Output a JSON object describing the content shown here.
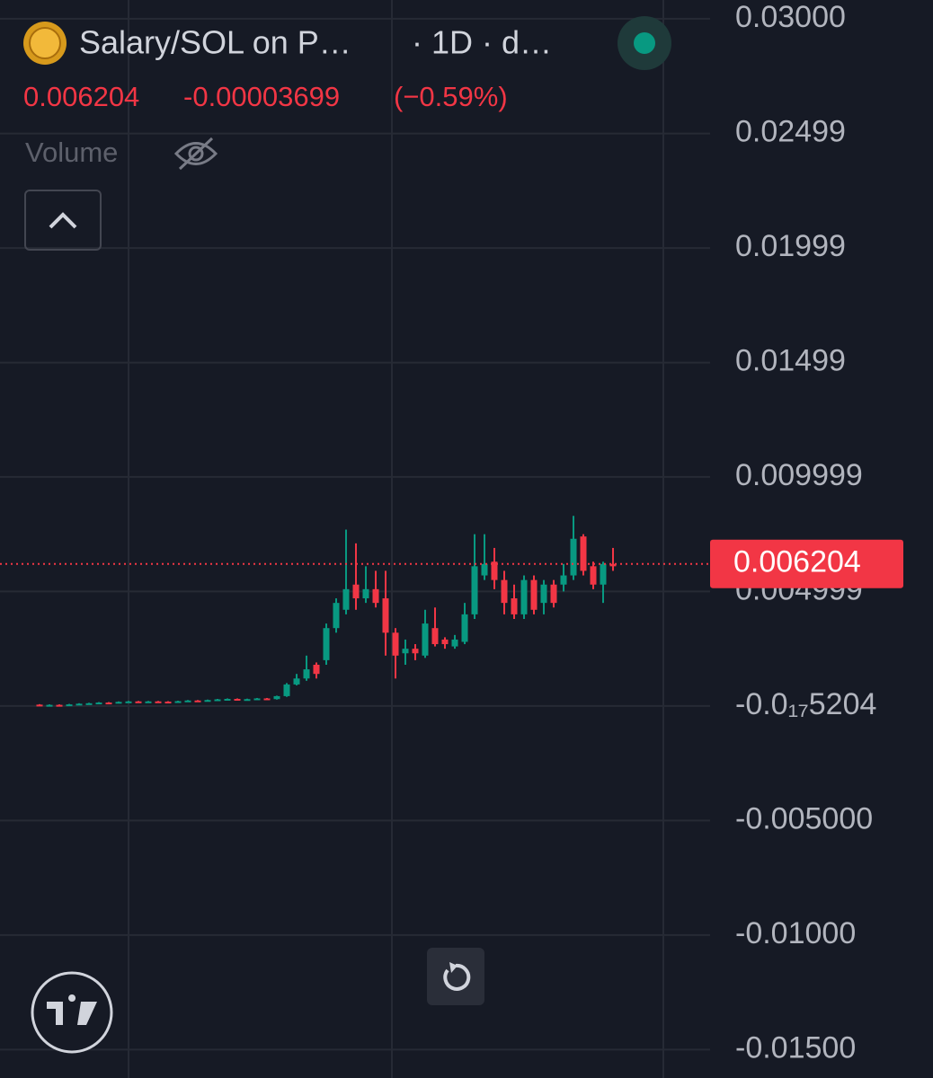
{
  "header": {
    "title": "Salary/SOL on P…",
    "interval": "· 1D · d…",
    "change": -3.699e-05,
    "change_percent": "(−0.59%)",
    "volume_label": "Volume"
  },
  "chart_data": {
    "type": "candlestick",
    "open": [
      6e-05,
      4e-05,
      5e-05,
      4e-05,
      7e-05,
      0.0001,
      0.00012,
      0.00015,
      0.00013,
      0.00018,
      0.0002,
      0.00017,
      0.0002,
      0.00019,
      0.00018,
      0.00021,
      0.00024,
      0.00022,
      0.00026,
      0.00029,
      0.00031,
      0.00028,
      0.0003,
      0.00033,
      0.0003,
      0.00043,
      0.00094,
      0.0012,
      0.0018,
      0.002,
      0.0034,
      0.0042,
      0.0053,
      0.0047,
      0.0051,
      0.0047,
      0.0032,
      0.0023,
      0.0025,
      0.0022,
      0.0034,
      0.0029,
      0.0026,
      0.0028,
      0.004,
      0.0057,
      0.0063,
      0.0055,
      0.0047,
      0.004,
      0.0055,
      0.0045,
      0.0053,
      0.0053,
      0.0057,
      0.0074,
      0.0061,
      0.0053,
      0.0062
    ],
    "high": [
      8e-05,
      7e-05,
      7e-05,
      9e-05,
      0.00012,
      0.00014,
      0.00017,
      0.00017,
      0.0002,
      0.00022,
      0.00022,
      0.00022,
      0.00022,
      0.00021,
      0.00023,
      0.00026,
      0.00026,
      0.00028,
      0.00031,
      0.00033,
      0.00033,
      0.00032,
      0.00035,
      0.00035,
      0.00045,
      0.001,
      0.0014,
      0.0022,
      0.0019,
      0.0036,
      0.0047,
      0.0077,
      0.0071,
      0.0061,
      0.0059,
      0.0059,
      0.0034,
      0.0029,
      0.0027,
      0.0042,
      0.0043,
      0.003,
      0.0031,
      0.0045,
      0.0075,
      0.0075,
      0.0069,
      0.0059,
      0.0053,
      0.0057,
      0.0057,
      0.0055,
      0.0055,
      0.0062,
      0.0083,
      0.0075,
      0.0063,
      0.0063,
      0.0069
    ],
    "low": [
      2e-05,
      2e-05,
      2e-05,
      2e-05,
      5e-05,
      8e-05,
      0.0001,
      0.00011,
      0.00011,
      0.00016,
      0.00015,
      0.00015,
      0.00017,
      0.00016,
      0.00016,
      0.00019,
      0.0002,
      0.0002,
      0.00024,
      0.00027,
      0.00026,
      0.00026,
      0.00028,
      0.00028,
      0.00028,
      0.0004,
      0.0009,
      0.0011,
      0.0012,
      0.0018,
      0.0032,
      0.004,
      0.0042,
      0.0045,
      0.0043,
      0.0022,
      0.0012,
      0.0018,
      0.002,
      0.0021,
      0.0026,
      0.0025,
      0.0025,
      0.0027,
      0.0038,
      0.0055,
      0.0051,
      0.004,
      0.0038,
      0.0038,
      0.004,
      0.004,
      0.0043,
      0.005,
      0.0055,
      0.0057,
      0.0051,
      0.0045,
      0.0059
    ],
    "close": [
      4e-05,
      5e-05,
      4e-05,
      7e-05,
      0.0001,
      0.00012,
      0.00015,
      0.00013,
      0.00018,
      0.0002,
      0.00017,
      0.0002,
      0.00019,
      0.00018,
      0.00021,
      0.00024,
      0.00022,
      0.00026,
      0.00029,
      0.00031,
      0.00028,
      0.0003,
      0.00033,
      0.0003,
      0.00043,
      0.00094,
      0.0012,
      0.0016,
      0.0014,
      0.0034,
      0.0045,
      0.0051,
      0.0047,
      0.0051,
      0.0045,
      0.0032,
      0.0022,
      0.0025,
      0.0023,
      0.0036,
      0.0027,
      0.0027,
      0.0029,
      0.004,
      0.0061,
      0.0062,
      0.0055,
      0.0045,
      0.004,
      0.0055,
      0.0042,
      0.0053,
      0.0045,
      0.0057,
      0.0073,
      0.0059,
      0.0053,
      0.0062,
      0.0061
    ],
    "up_color": "#089981",
    "down_color": "#f23645",
    "last_price": 0.006204,
    "ylim": [
      -0.01624,
      0.03082
    ],
    "yticks": [
      {
        "value": 0.03,
        "label": "0.03000"
      },
      0.02499,
      0.01999,
      0.01499,
      0.009999,
      0.004999,
      {
        "value": -5.204e-18,
        "label": "-0.0₁₇5204"
      },
      {
        "value": -0.005,
        "label": "-0.005000"
      },
      {
        "value": -0.01,
        "label": "-0.01000"
      },
      {
        "value": -0.015,
        "label": "-0.01500"
      }
    ],
    "grid": true
  }
}
